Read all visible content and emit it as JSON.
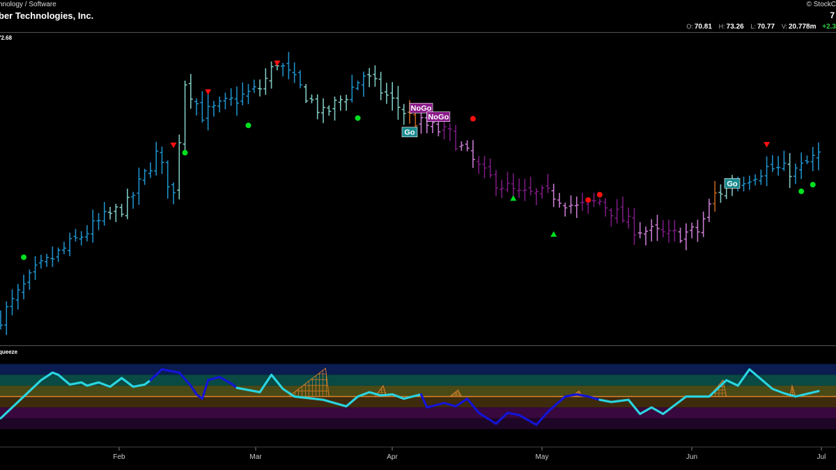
{
  "header": {
    "sector": "hnology / Software",
    "company": "ber Technologies, Inc.",
    "brand": "© StockC",
    "last_price": "7",
    "ohlc": [
      {
        "key": "O:",
        "value": "70.81"
      },
      {
        "key": "H:",
        "value": "73.26"
      },
      {
        "key": "L:",
        "value": "70.77"
      },
      {
        "key": "V:",
        "value": "20.778m"
      }
    ],
    "change": "+2.3"
  },
  "price_label": "72.68",
  "oscillator_label": "queeze",
  "colors": {
    "background": "#000000",
    "go_strong": "#1e90c8",
    "go_weak": "#7ec8c0",
    "nogo_strong": "#7a1a80",
    "nogo_weak": "#c77ad0",
    "neutral": "#c0611b",
    "osc_cyan": "#2ad4e0",
    "osc_blue": "#1414d8",
    "zero_line": "#d9822b"
  },
  "chart_data": [
    {
      "type": "ohlc",
      "x_axis": {
        "ticks": [
          "Feb",
          "Mar",
          "Apr",
          "May",
          "Jun",
          "Jul"
        ]
      },
      "ylim": [
        30,
        76
      ],
      "price_label": "72.68",
      "trend_bars": [
        {
          "from": 0,
          "to": 18,
          "state": "go_strong"
        },
        {
          "from": 19,
          "to": 22,
          "state": "go_weak"
        },
        {
          "from": 23,
          "to": 30,
          "state": "go_strong"
        },
        {
          "from": 31,
          "to": 33,
          "state": "go_weak"
        },
        {
          "from": 34,
          "to": 44,
          "state": "go_strong"
        },
        {
          "from": 45,
          "to": 48,
          "state": "go_weak"
        },
        {
          "from": 49,
          "to": 52,
          "state": "go_strong"
        },
        {
          "from": 53,
          "to": 60,
          "state": "go_weak"
        },
        {
          "from": 61,
          "to": 63,
          "state": "go_strong"
        },
        {
          "from": 64,
          "to": 70,
          "state": "go_weak"
        },
        {
          "from": 71,
          "to": 72,
          "state": "neutral"
        },
        {
          "from": 73,
          "to": 76,
          "state": "nogo_weak"
        },
        {
          "from": 77,
          "to": 79,
          "state": "nogo_strong"
        },
        {
          "from": 80,
          "to": 82,
          "state": "nogo_weak"
        },
        {
          "from": 83,
          "to": 95,
          "state": "nogo_strong"
        },
        {
          "from": 96,
          "to": 100,
          "state": "nogo_weak"
        },
        {
          "from": 101,
          "to": 110,
          "state": "nogo_strong"
        },
        {
          "from": 111,
          "to": 114,
          "state": "nogo_weak"
        },
        {
          "from": 115,
          "to": 117,
          "state": "nogo_strong"
        },
        {
          "from": 118,
          "to": 123,
          "state": "nogo_weak"
        },
        {
          "from": 124,
          "to": 124,
          "state": "neutral"
        },
        {
          "from": 125,
          "to": 127,
          "state": "go_weak"
        },
        {
          "from": 128,
          "to": 136,
          "state": "go_strong"
        },
        {
          "from": 137,
          "to": 137,
          "state": "go_weak"
        },
        {
          "from": 138,
          "to": 142,
          "state": "go_strong"
        }
      ],
      "close_path": [
        [
          0,
          33.5
        ],
        [
          6,
          40.5
        ],
        [
          12,
          44.5
        ],
        [
          18,
          48.5
        ],
        [
          22,
          50.5
        ],
        [
          27,
          58
        ],
        [
          30,
          52
        ],
        [
          32,
          69
        ],
        [
          35,
          64
        ],
        [
          40,
          66
        ],
        [
          45,
          68
        ],
        [
          48,
          72
        ],
        [
          52,
          68
        ],
        [
          56,
          64
        ],
        [
          60,
          67
        ],
        [
          63,
          70
        ],
        [
          68,
          66
        ],
        [
          72,
          63
        ],
        [
          78,
          61
        ],
        [
          84,
          55
        ],
        [
          90,
          52
        ],
        [
          96,
          52
        ],
        [
          100,
          50
        ],
        [
          104,
          51
        ],
        [
          110,
          47
        ],
        [
          116,
          45.8
        ],
        [
          121,
          46.5
        ],
        [
          124,
          52
        ],
        [
          128,
          54
        ],
        [
          133,
          56
        ],
        [
          138,
          55.5
        ],
        [
          142,
          58
        ]
      ],
      "markers": [
        {
          "type": "go",
          "label": "Go",
          "bar": 71,
          "price": 61.4
        },
        {
          "type": "go",
          "label": "Go",
          "bar": 127,
          "price": 53.7
        },
        {
          "type": "nogo",
          "label": "NoGo",
          "bar": 73,
          "price": 65.0
        },
        {
          "type": "nogo",
          "label": "NoGo",
          "bar": 76,
          "price": 63.7
        },
        {
          "type": "dot",
          "color": "#00e020",
          "bar": 4,
          "price": 42.6
        },
        {
          "type": "dot",
          "color": "#00e020",
          "bar": 32,
          "price": 58.3
        },
        {
          "type": "dot",
          "color": "#00e020",
          "bar": 43,
          "price": 62.4
        },
        {
          "type": "dot",
          "color": "#00e020",
          "bar": 62,
          "price": 63.5
        },
        {
          "type": "dot",
          "color": "#00e020",
          "bar": 139,
          "price": 52.5
        },
        {
          "type": "dot",
          "color": "#00e020",
          "bar": 141,
          "price": 53.5
        },
        {
          "type": "dot",
          "color": "#ff1010",
          "bar": 82,
          "price": 63.4
        },
        {
          "type": "dot",
          "color": "#ff1010",
          "bar": 102,
          "price": 51.2
        },
        {
          "type": "dot",
          "color": "#ff1010",
          "bar": 104,
          "price": 52.0
        },
        {
          "type": "up",
          "color": "#00e020",
          "bar": 89,
          "price": 51.5
        },
        {
          "type": "up",
          "color": "#00e020",
          "bar": 96,
          "price": 46.1
        },
        {
          "type": "down",
          "color": "#ff1010",
          "bar": 30,
          "price": 59.4
        },
        {
          "type": "down",
          "color": "#ff1010",
          "bar": 36,
          "price": 67.4
        },
        {
          "type": "down",
          "color": "#ff1010",
          "bar": 48,
          "price": 71.7
        },
        {
          "type": "down",
          "color": "#ff1010",
          "bar": 133,
          "price": 59.5
        }
      ]
    },
    {
      "type": "line",
      "name": "queeze",
      "ylim": [
        -4,
        4
      ],
      "zero": 0,
      "bands": [
        {
          "from": 2,
          "to": 3,
          "color": "#0a1c50"
        },
        {
          "from": 1,
          "to": 2,
          "color": "#0a4a44"
        },
        {
          "from": 0,
          "to": 1,
          "color": "#4a4a16"
        },
        {
          "from": -1,
          "to": 0,
          "color": "#3e2a0c"
        },
        {
          "from": -2,
          "to": -1,
          "color": "#38083e"
        },
        {
          "from": -3,
          "to": -2,
          "color": "#1e0626"
        }
      ],
      "segments": [
        {
          "color": "cyan",
          "points": [
            [
              0,
              -2
            ],
            [
              3,
              -0.5
            ],
            [
              7,
              1.5
            ],
            [
              9,
              2.2
            ],
            [
              10,
              2
            ],
            [
              12,
              1.1
            ],
            [
              14,
              1.3
            ],
            [
              15,
              1
            ],
            [
              17,
              1.3
            ],
            [
              19,
              0.9
            ],
            [
              21,
              1.7
            ],
            [
              23,
              0.9
            ],
            [
              25,
              1.1
            ],
            [
              26,
              1.5
            ]
          ]
        },
        {
          "color": "blue",
          "points": [
            [
              26,
              1.5
            ],
            [
              28,
              2.5
            ],
            [
              31,
              2.2
            ],
            [
              33,
              1
            ],
            [
              34,
              0.2
            ],
            [
              35,
              -0.2
            ],
            [
              36,
              1.5
            ],
            [
              38,
              1.8
            ],
            [
              40,
              1.2
            ],
            [
              41,
              0.8
            ]
          ]
        },
        {
          "color": "cyan",
          "points": [
            [
              41,
              0.8
            ],
            [
              45,
              0.4
            ],
            [
              47,
              2
            ],
            [
              49,
              0.7
            ],
            [
              51,
              0
            ],
            [
              56,
              -0.3
            ],
            [
              60,
              -0.9
            ],
            [
              62,
              0
            ],
            [
              64,
              0.4
            ],
            [
              66,
              0.1
            ],
            [
              68,
              0.2
            ],
            [
              70,
              -0.2
            ],
            [
              73,
              0.2
            ]
          ]
        },
        {
          "color": "blue",
          "points": [
            [
              73,
              0.2
            ],
            [
              74,
              -1
            ],
            [
              77,
              -0.6
            ],
            [
              79,
              -0.9
            ],
            [
              81,
              -0.2
            ],
            [
              83,
              -1.5
            ],
            [
              86,
              -2.5
            ],
            [
              88,
              -1.5
            ],
            [
              90,
              -1.7
            ],
            [
              93,
              -2.6
            ],
            [
              95,
              -1.4
            ],
            [
              98,
              0
            ],
            [
              100,
              0.2
            ],
            [
              102,
              0
            ],
            [
              104,
              -0.3
            ]
          ]
        },
        {
          "color": "cyan",
          "points": [
            [
              104,
              -0.3
            ],
            [
              106,
              -0.5
            ],
            [
              109,
              -0.3
            ],
            [
              111,
              -1.6
            ],
            [
              113,
              -1
            ],
            [
              115,
              -1.6
            ],
            [
              119,
              0
            ],
            [
              123,
              0
            ],
            [
              126,
              1.5
            ],
            [
              128,
              1
            ],
            [
              130,
              2.5
            ],
            [
              134,
              0.7
            ],
            [
              136,
              0.3
            ],
            [
              138,
              0
            ],
            [
              142,
              0.5
            ]
          ]
        }
      ],
      "squeeze_zones": [
        {
          "from": 50,
          "to": 57,
          "peak": 2.6
        },
        {
          "from": 65,
          "to": 67,
          "peak": 1.0
        },
        {
          "from": 78,
          "to": 80,
          "peak": 0.6
        },
        {
          "from": 99,
          "to": 101,
          "peak": 0.5
        },
        {
          "from": 123,
          "to": 126,
          "peak": 1.5
        },
        {
          "from": 137,
          "to": 138,
          "peak": 1.0
        }
      ]
    }
  ]
}
